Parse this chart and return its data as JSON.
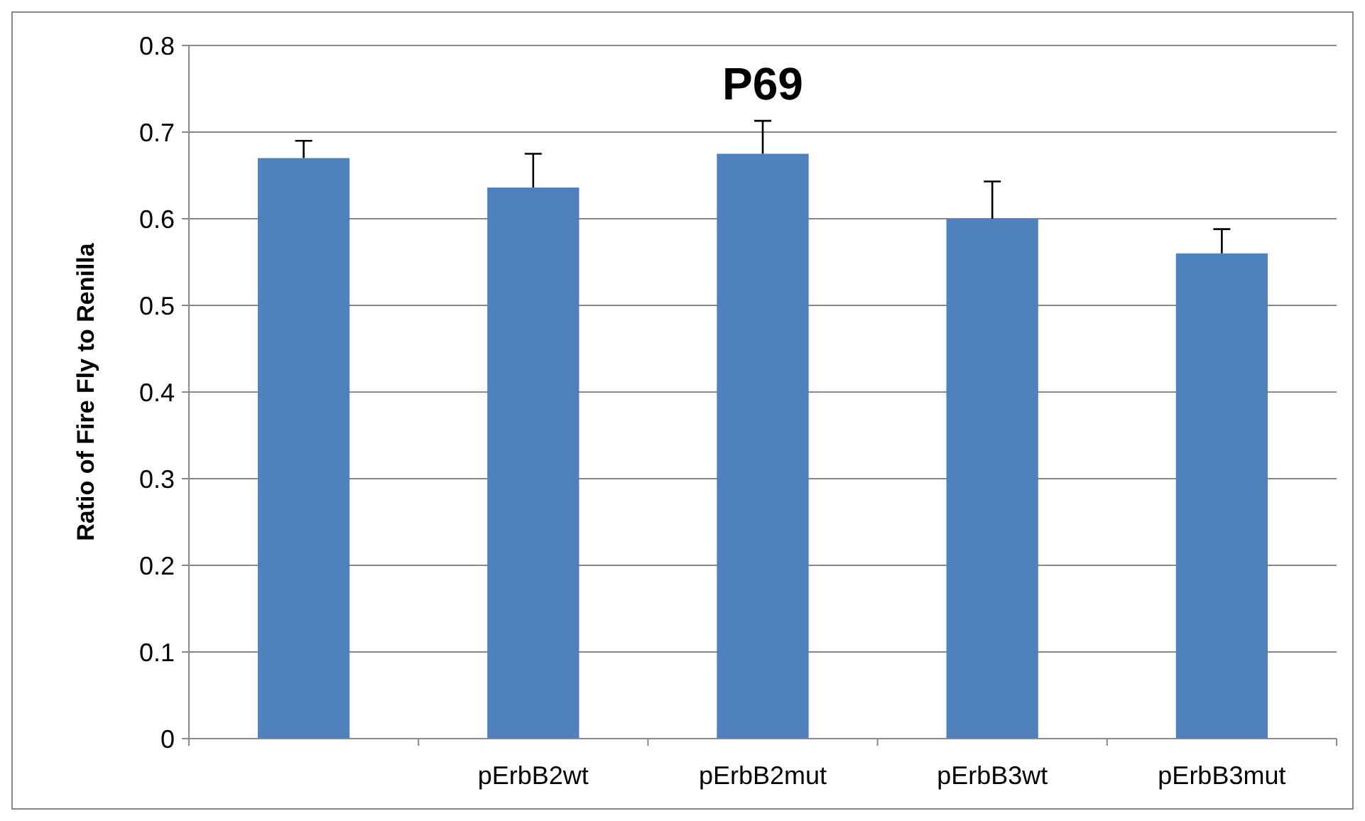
{
  "chart_data": {
    "type": "bar",
    "title": "P69",
    "ylabel": "Ratio of Fire Fly to Renilla",
    "categories": [
      null,
      "pErbB2wt",
      "pErbB2mut",
      "pErbB3wt",
      "pErbB3mut"
    ],
    "values": [
      0.67,
      0.636,
      0.675,
      0.6,
      0.56
    ],
    "errors": [
      [
        0.67,
        0.69
      ],
      [
        0.636,
        0.675
      ],
      [
        0.675,
        0.713
      ],
      [
        0.6,
        0.643
      ],
      [
        0.56,
        0.588
      ]
    ],
    "color": "#4f81bd",
    "ylim": [
      0,
      0.8
    ],
    "yticks": [
      0,
      0.1,
      0.2,
      0.3,
      0.4,
      0.5,
      0.6,
      0.7,
      0.8
    ],
    "grid": "y"
  }
}
